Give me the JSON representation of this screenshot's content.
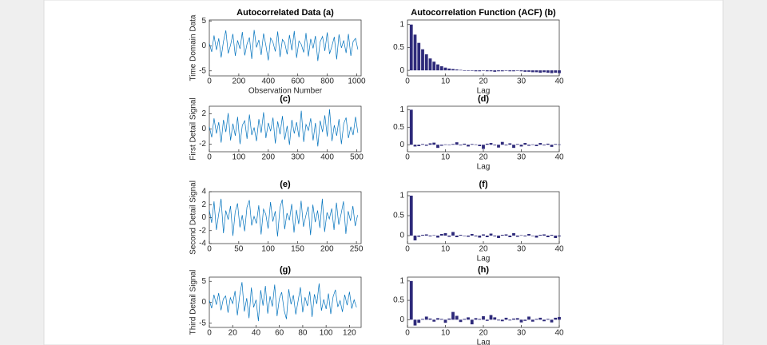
{
  "chart_data": [
    {
      "type": "line",
      "title": "Autocorrelated Data (a)",
      "ylabel": "Time Domain Data",
      "xlabel": "Observation Number",
      "color": "#0072bd",
      "x": [
        0,
        16,
        32,
        48,
        64,
        80,
        96,
        112,
        128,
        144,
        160,
        176,
        192,
        208,
        224,
        240,
        256,
        272,
        288,
        304,
        320,
        336,
        352,
        368,
        384,
        400,
        416,
        432,
        448,
        464,
        480,
        496,
        512,
        528,
        544,
        560,
        576,
        592,
        608,
        624,
        640,
        656,
        672,
        688,
        704,
        720,
        736,
        752,
        768,
        784,
        800,
        816,
        832,
        848,
        864,
        880,
        896,
        912,
        928,
        944,
        960,
        976,
        992,
        1008
      ],
      "values": [
        0.5,
        -1.2,
        2.1,
        -0.8,
        1.5,
        -2.3,
        0.9,
        3.1,
        -1.5,
        0.2,
        2.4,
        -2.0,
        1.1,
        -0.6,
        2.8,
        -1.9,
        0.4,
        1.7,
        -2.6,
        3.2,
        -0.3,
        1.2,
        -1.8,
        2.5,
        0.1,
        -2.9,
        1.6,
        0.7,
        -1.1,
        2.9,
        -2.2,
        1.3,
        0.6,
        -1.7,
        2.2,
        -0.9,
        3.0,
        -2.4,
        1.0,
        0.3,
        -1.3,
        2.6,
        -2.1,
        1.4,
        -0.5,
        2.0,
        -3.0,
        0.8,
        1.9,
        -1.0,
        2.7,
        -1.6,
        0.0,
        1.8,
        -2.7,
        2.3,
        -0.4,
        1.1,
        -1.4,
        2.4,
        -2.0,
        0.9,
        1.5,
        -0.7
      ],
      "xlim": [
        0,
        1030
      ],
      "xticks": [
        0,
        200,
        400,
        600,
        800,
        1000
      ],
      "ylim": [
        -6,
        5.2
      ],
      "yticks": [
        -5,
        0,
        5
      ]
    },
    {
      "type": "bar",
      "title": "Autocorrelation Function (ACF) (b)",
      "xlabel": "Lag",
      "color": "#2e2a7a",
      "x": [
        1,
        2,
        3,
        4,
        5,
        6,
        7,
        8,
        9,
        10,
        11,
        12,
        13,
        14,
        15,
        16,
        17,
        18,
        19,
        20,
        21,
        22,
        23,
        24,
        25,
        26,
        27,
        28,
        29,
        30,
        31,
        32,
        33,
        34,
        35,
        36,
        37,
        38,
        39,
        40
      ],
      "values": [
        1,
        0.78,
        0.6,
        0.46,
        0.35,
        0.26,
        0.19,
        0.13,
        0.09,
        0.06,
        0.04,
        0.03,
        0.02,
        0.01,
        0,
        -0.01,
        -0.01,
        -0.02,
        -0.02,
        -0.01,
        -0.02,
        -0.02,
        -0.03,
        -0.02,
        -0.02,
        -0.01,
        -0.02,
        -0.02,
        -0.01,
        -0.02,
        -0.03,
        -0.03,
        -0.04,
        -0.04,
        -0.05,
        -0.04,
        -0.05,
        -0.06,
        -0.05,
        -0.06
      ],
      "xlim": [
        0,
        40
      ],
      "xticks": [
        0,
        10,
        20,
        30,
        40
      ],
      "ylim": [
        -0.12,
        1.1
      ],
      "yticks": [
        0,
        0.5,
        1
      ]
    },
    {
      "type": "line",
      "title": "(c)",
      "ylabel": "First Detail Signal",
      "color": "#0072bd",
      "x": [
        0,
        8,
        16,
        24,
        32,
        40,
        48,
        56,
        64,
        72,
        80,
        88,
        96,
        104,
        112,
        120,
        128,
        136,
        144,
        152,
        160,
        168,
        176,
        184,
        192,
        200,
        208,
        216,
        224,
        232,
        240,
        248,
        256,
        264,
        272,
        280,
        288,
        296,
        304,
        312,
        320,
        328,
        336,
        344,
        352,
        360,
        368,
        376,
        384,
        392,
        400,
        408,
        416,
        424,
        432,
        440,
        448,
        456,
        464,
        472,
        480,
        488,
        496,
        504
      ],
      "values": [
        0.3,
        -1.1,
        1.4,
        -0.6,
        0.9,
        -1.8,
        1.2,
        -0.4,
        2.1,
        -1.5,
        0.7,
        -0.9,
        1.6,
        -2.0,
        0.5,
        1.1,
        -1.3,
        1.9,
        -0.8,
        0.2,
        -1.6,
        1.3,
        -0.5,
        2.2,
        -1.2,
        0.8,
        -0.3,
        1.5,
        -1.9,
        1.0,
        -0.7,
        1.7,
        -1.4,
        0.4,
        -2.1,
        1.2,
        -0.6,
        0.9,
        -1.1,
        2.4,
        -1.7,
        0.6,
        -0.2,
        1.4,
        -1.5,
        0.8,
        -2.3,
        1.1,
        -0.4,
        1.8,
        -1.0,
        2.6,
        -1.6,
        0.5,
        -0.9,
        1.3,
        -2.0,
        0.7,
        1.5,
        -1.2,
        0.3,
        -0.8,
        1.6,
        -0.5
      ],
      "xlim": [
        0,
        515
      ],
      "xticks": [
        0,
        100,
        200,
        300,
        400,
        500
      ],
      "ylim": [
        -3,
        3
      ],
      "yticks": [
        -2,
        0,
        2
      ]
    },
    {
      "type": "bar",
      "title": "(d)",
      "xlabel": "Lag",
      "color": "#2e2a7a",
      "x": [
        1,
        2,
        3,
        4,
        5,
        6,
        7,
        8,
        9,
        10,
        11,
        12,
        13,
        14,
        15,
        16,
        17,
        18,
        19,
        20,
        21,
        22,
        23,
        24,
        25,
        26,
        27,
        28,
        29,
        30,
        31,
        32,
        33,
        34,
        35,
        36,
        37,
        38,
        39,
        40
      ],
      "values": [
        1,
        -0.05,
        -0.04,
        0.02,
        -0.03,
        0.04,
        0.06,
        -0.09,
        -0.03,
        0.01,
        0,
        0.02,
        0.07,
        -0.02,
        0.03,
        -0.05,
        0.02,
        0.01,
        -0.04,
        -0.12,
        0.03,
        0.05,
        -0.02,
        -0.08,
        0.08,
        -0.02,
        0.04,
        -0.09,
        0.02,
        -0.05,
        0.05,
        -0.03,
        0.01,
        -0.04,
        0.05,
        -0.02,
        0.03,
        -0.06,
        0.02,
        0.01
      ],
      "xlim": [
        0,
        40
      ],
      "xticks": [
        0,
        10,
        20,
        30,
        40
      ],
      "ylim": [
        -0.2,
        1.1
      ],
      "yticks": [
        0,
        0.5,
        1
      ]
    },
    {
      "type": "line",
      "title": "(e)",
      "ylabel": "Second Detail Signal",
      "color": "#0072bd",
      "x": [
        0,
        4,
        8,
        12,
        16,
        20,
        24,
        28,
        32,
        36,
        40,
        44,
        48,
        52,
        56,
        60,
        64,
        68,
        72,
        76,
        80,
        84,
        88,
        92,
        96,
        100,
        104,
        108,
        112,
        116,
        120,
        124,
        128,
        132,
        136,
        140,
        144,
        148,
        152,
        156,
        160,
        164,
        168,
        172,
        176,
        180,
        184,
        188,
        192,
        196,
        200,
        204,
        208,
        212,
        216,
        220,
        224,
        228,
        232,
        236,
        240,
        244,
        248,
        252
      ],
      "values": [
        1.2,
        -0.8,
        2.5,
        -1.9,
        0.6,
        2.9,
        -2.4,
        1.1,
        -0.3,
        1.8,
        -2.8,
        0.9,
        2.2,
        -1.5,
        0.4,
        -2.1,
        1.6,
        2.7,
        -1.2,
        0.2,
        -0.9,
        1.9,
        -2.6,
        1.3,
        0.5,
        -1.7,
        2.4,
        -0.6,
        1.0,
        -2.9,
        1.5,
        2.8,
        -1.8,
        0.7,
        -0.4,
        2.1,
        -2.3,
        1.2,
        -1.0,
        2.6,
        -1.4,
        0.3,
        1.7,
        -2.7,
        2.0,
        -0.7,
        1.1,
        -1.6,
        2.9,
        -2.2,
        0.8,
        -0.2,
        1.4,
        -1.9,
        2.3,
        -1.1,
        0.6,
        2.5,
        -2.5,
        1.0,
        -0.5,
        1.8,
        -1.3,
        0.4
      ],
      "xlim": [
        0,
        258
      ],
      "xticks": [
        0,
        50,
        100,
        150,
        200,
        250
      ],
      "ylim": [
        -4,
        4
      ],
      "yticks": [
        -4,
        -2,
        0,
        2,
        4
      ]
    },
    {
      "type": "bar",
      "title": "(f)",
      "xlabel": "Lag",
      "color": "#2e2a7a",
      "x": [
        1,
        2,
        3,
        4,
        5,
        6,
        7,
        8,
        9,
        10,
        11,
        12,
        13,
        14,
        15,
        16,
        17,
        18,
        19,
        20,
        21,
        22,
        23,
        24,
        25,
        26,
        27,
        28,
        29,
        30,
        31,
        32,
        33,
        34,
        35,
        36,
        37,
        38,
        39,
        40
      ],
      "values": [
        1,
        -0.12,
        -0.03,
        0.02,
        0.03,
        -0.02,
        0.01,
        -0.05,
        0.04,
        0.06,
        -0.03,
        0.09,
        -0.04,
        0.02,
        0,
        -0.03,
        0.04,
        -0.02,
        -0.05,
        0.03,
        -0.04,
        0.05,
        -0.02,
        -0.06,
        0.02,
        0.03,
        -0.04,
        0.06,
        -0.03,
        0.01,
        -0.02,
        0.04,
        0,
        -0.05,
        0.02,
        0.03,
        -0.04,
        0.02,
        -0.06,
        -0.02
      ],
      "xlim": [
        0,
        40
      ],
      "xticks": [
        0,
        10,
        20,
        30,
        40
      ],
      "ylim": [
        -0.2,
        1.1
      ],
      "yticks": [
        0,
        0.5,
        1
      ]
    },
    {
      "type": "line",
      "title": "(g)",
      "ylabel": "Third Detail Signal",
      "color": "#0072bd",
      "x": [
        0,
        2,
        4,
        6,
        8,
        10,
        12,
        14,
        16,
        18,
        20,
        22,
        24,
        26,
        28,
        30,
        32,
        34,
        36,
        38,
        40,
        42,
        44,
        46,
        48,
        50,
        52,
        54,
        56,
        58,
        60,
        62,
        64,
        66,
        68,
        70,
        72,
        74,
        76,
        78,
        80,
        82,
        84,
        86,
        88,
        90,
        92,
        94,
        96,
        98,
        100,
        102,
        104,
        106,
        108,
        110,
        112,
        114,
        116,
        118,
        120,
        122,
        124,
        126
      ],
      "values": [
        0.5,
        -1.4,
        1.8,
        -0.6,
        2.2,
        -1.9,
        0.8,
        1.5,
        -2.5,
        1.1,
        -0.3,
        2.7,
        -3.1,
        1.6,
        4.8,
        -2.2,
        1.0,
        -3.8,
        3.5,
        -1.2,
        0.6,
        -4.5,
        2.9,
        -0.8,
        3.9,
        -2.7,
        1.4,
        -1.0,
        4.2,
        -3.3,
        0.9,
        2.4,
        -1.8,
        -4.0,
        3.1,
        -0.5,
        1.7,
        -2.9,
        0.3,
        3.6,
        -2.4,
        1.2,
        -0.9,
        2.6,
        -3.5,
        1.9,
        -0.4,
        4.5,
        -2.0,
        0.7,
        -1.6,
        2.1,
        -2.8,
        1.3,
        3.0,
        -1.1,
        0.4,
        -2.3,
        1.8,
        -0.7,
        2.5,
        -1.5,
        0.6,
        -1.2
      ],
      "xlim": [
        0,
        130
      ],
      "xticks": [
        0,
        20,
        40,
        60,
        80,
        100,
        120
      ],
      "ylim": [
        -6,
        6
      ],
      "yticks": [
        -5,
        0,
        5
      ]
    },
    {
      "type": "bar",
      "title": "(h)",
      "xlabel": "Lag",
      "color": "#2e2a7a",
      "x": [
        1,
        2,
        3,
        4,
        5,
        6,
        7,
        8,
        9,
        10,
        11,
        12,
        13,
        14,
        15,
        16,
        17,
        18,
        19,
        20,
        21,
        22,
        23,
        24,
        25,
        26,
        27,
        28,
        29,
        30,
        31,
        32,
        33,
        34,
        35,
        36,
        37,
        38,
        39,
        40
      ],
      "values": [
        1,
        -0.15,
        -0.08,
        0.02,
        0.08,
        0.03,
        -0.05,
        0.04,
        0.02,
        -0.08,
        0.03,
        0.2,
        0.1,
        -0.06,
        0.02,
        0.06,
        -0.12,
        0.04,
        0.02,
        0.09,
        -0.03,
        0.12,
        0.06,
        -0.02,
        -0.04,
        0.05,
        -0.02,
        0.03,
        0.04,
        -0.07,
        -0.03,
        0.08,
        -0.05,
        0.02,
        0.05,
        -0.04,
        0.02,
        -0.07,
        0.05,
        0.07
      ],
      "xlim": [
        0,
        40
      ],
      "xticks": [
        0,
        10,
        20,
        30,
        40
      ],
      "ylim": [
        -0.2,
        1.1
      ],
      "yticks": [
        0,
        0.5,
        1
      ]
    }
  ]
}
